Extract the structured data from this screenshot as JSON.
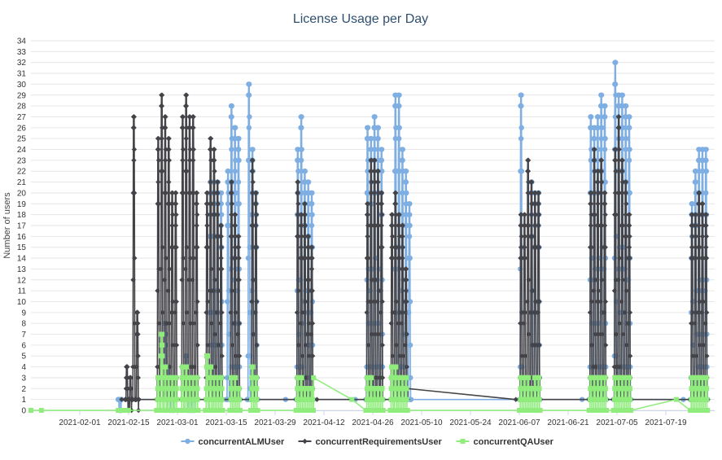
{
  "chart_data": {
    "type": "line",
    "title": "License Usage per Day",
    "xlabel": "",
    "ylabel": "Number of users",
    "x_type": "date",
    "x_range": [
      "2021-01-18",
      "2021-08-02"
    ],
    "x_ticks": [
      "2021-02-01",
      "2021-02-15",
      "2021-03-01",
      "2021-03-15",
      "2021-03-29",
      "2021-04-12",
      "2021-04-26",
      "2021-05-10",
      "2021-05-24",
      "2021-06-07",
      "2021-06-21",
      "2021-07-05",
      "2021-07-19"
    ],
    "ylim": [
      0,
      34
    ],
    "y_ticks": [
      0,
      1,
      2,
      3,
      4,
      5,
      6,
      7,
      8,
      9,
      10,
      11,
      12,
      13,
      14,
      15,
      16,
      17,
      18,
      19,
      20,
      21,
      22,
      23,
      24,
      25,
      26,
      27,
      28,
      29,
      30,
      31,
      32,
      33,
      34
    ],
    "grid": "horizontal",
    "legend_position": "bottom",
    "series": [
      {
        "name": "concurrentALMUser",
        "color": "#7eaee2",
        "marker": "circle",
        "spikes": [
          {
            "start": "2021-02-12",
            "end": "2021-02-12",
            "peaks": [
              1
            ]
          },
          {
            "start": "2021-02-25",
            "end": "2021-02-27",
            "peaks": [
              8,
              4,
              3
            ]
          },
          {
            "start": "2021-03-03",
            "end": "2021-03-05",
            "peaks": [
              5,
              3,
              3
            ]
          },
          {
            "start": "2021-03-10",
            "end": "2021-03-13",
            "peaks": [
              21,
              21,
              21,
              20
            ]
          },
          {
            "start": "2021-03-15",
            "end": "2021-03-18",
            "peaks": [
              22,
              28,
              26,
              25
            ]
          },
          {
            "start": "2021-03-21",
            "end": "2021-03-23",
            "peaks": [
              30,
              24,
              20
            ]
          },
          {
            "start": "2021-04-04",
            "end": "2021-04-08",
            "peaks": [
              24,
              27,
              22,
              21,
              20
            ]
          },
          {
            "start": "2021-04-24",
            "end": "2021-04-28",
            "peaks": [
              26,
              25,
              27,
              26,
              24
            ]
          },
          {
            "start": "2021-05-02",
            "end": "2021-05-06",
            "peaks": [
              29,
              29,
              24,
              22,
              19
            ]
          },
          {
            "start": "2021-06-07",
            "end": "2021-06-07",
            "peaks": [
              29
            ]
          },
          {
            "start": "2021-06-10",
            "end": "2021-06-12",
            "peaks": [
              21,
              20,
              20
            ]
          },
          {
            "start": "2021-06-27",
            "end": "2021-07-01",
            "peaks": [
              27,
              26,
              27,
              29,
              28
            ]
          },
          {
            "start": "2021-07-04",
            "end": "2021-07-08",
            "peaks": [
              32,
              29,
              29,
              28,
              27
            ]
          },
          {
            "start": "2021-07-26",
            "end": "2021-07-30",
            "peaks": [
              19,
              22,
              24,
              24,
              24
            ]
          }
        ],
        "baseline": [
          {
            "x": "2021-02-13",
            "y": 1
          },
          {
            "x": "2021-04-01",
            "y": 1
          },
          {
            "x": "2021-04-21",
            "y": 1
          },
          {
            "x": "2021-06-25",
            "y": 1
          },
          {
            "x": "2021-07-24",
            "y": 1
          }
        ]
      },
      {
        "name": "concurrentRequirementsUser",
        "color": "#434348",
        "marker": "diamond",
        "spikes": [
          {
            "start": "2021-02-14",
            "end": "2021-02-17",
            "peaks": [
              4,
              3,
              27,
              9
            ]
          },
          {
            "start": "2021-02-23",
            "end": "2021-02-28",
            "peaks": [
              25,
              29,
              27,
              25,
              20,
              20
            ]
          },
          {
            "start": "2021-03-02",
            "end": "2021-03-06",
            "peaks": [
              27,
              29,
              27,
              27,
              20
            ]
          },
          {
            "start": "2021-03-09",
            "end": "2021-03-13",
            "peaks": [
              20,
              25,
              24,
              21,
              17
            ]
          },
          {
            "start": "2021-03-16",
            "end": "2021-03-18",
            "peaks": [
              21,
              18,
              16
            ]
          },
          {
            "start": "2021-03-22",
            "end": "2021-03-23",
            "peaks": [
              23,
              20
            ]
          },
          {
            "start": "2021-04-04",
            "end": "2021-04-08",
            "peaks": [
              21,
              18,
              19,
              16,
              15
            ]
          },
          {
            "start": "2021-04-24",
            "end": "2021-04-28",
            "peaks": [
              19,
              23,
              23,
              22,
              20
            ]
          },
          {
            "start": "2021-05-01",
            "end": "2021-05-05",
            "peaks": [
              18,
              20,
              18,
              17,
              13
            ]
          },
          {
            "start": "2021-06-07",
            "end": "2021-06-12",
            "peaks": [
              18,
              18,
              23,
              21,
              20,
              20
            ]
          },
          {
            "start": "2021-06-27",
            "end": "2021-07-01",
            "peaks": [
              20,
              24,
              22,
              23,
              20
            ]
          },
          {
            "start": "2021-07-04",
            "end": "2021-07-08",
            "peaks": [
              24,
              27,
              23,
              21,
              18
            ]
          },
          {
            "start": "2021-07-26",
            "end": "2021-07-30",
            "peaks": [
              18,
              18,
              20,
              19,
              18
            ]
          }
        ],
        "baseline": [
          {
            "x": "2021-02-13",
            "y": 1
          },
          {
            "x": "2021-03-19",
            "y": 1
          },
          {
            "x": "2021-04-10",
            "y": 1
          },
          {
            "x": "2021-05-06",
            "y": 2
          },
          {
            "x": "2021-06-06",
            "y": 1
          },
          {
            "x": "2021-07-31",
            "y": 1
          }
        ]
      },
      {
        "name": "concurrentQAUser",
        "color": "#90ed7d",
        "marker": "square",
        "spikes": [
          {
            "start": "2021-02-23",
            "end": "2021-02-28",
            "peaks": [
              3,
              7,
              4,
              3,
              3,
              3
            ]
          },
          {
            "start": "2021-03-02",
            "end": "2021-03-06",
            "peaks": [
              4,
              4,
              3,
              3,
              3
            ]
          },
          {
            "start": "2021-03-09",
            "end": "2021-03-13",
            "peaks": [
              5,
              4,
              3,
              3,
              3
            ]
          },
          {
            "start": "2021-03-16",
            "end": "2021-03-18",
            "peaks": [
              3,
              3,
              2
            ]
          },
          {
            "start": "2021-03-22",
            "end": "2021-03-23",
            "peaks": [
              4,
              3
            ]
          },
          {
            "start": "2021-04-04",
            "end": "2021-04-08",
            "peaks": [
              3,
              3,
              2,
              2,
              2
            ]
          },
          {
            "start": "2021-04-24",
            "end": "2021-04-28",
            "peaks": [
              3,
              3,
              2,
              2,
              2
            ]
          },
          {
            "start": "2021-05-01",
            "end": "2021-05-05",
            "peaks": [
              4,
              4,
              3,
              3,
              3
            ]
          },
          {
            "start": "2021-06-07",
            "end": "2021-06-12",
            "peaks": [
              3,
              3,
              3,
              2,
              3,
              3
            ]
          },
          {
            "start": "2021-06-27",
            "end": "2021-07-01",
            "peaks": [
              3,
              3,
              3,
              3,
              3
            ]
          },
          {
            "start": "2021-07-04",
            "end": "2021-07-08",
            "peaks": [
              3,
              3,
              3,
              3,
              3
            ]
          },
          {
            "start": "2021-07-26",
            "end": "2021-07-30",
            "peaks": [
              3,
              3,
              3,
              3,
              3
            ]
          }
        ],
        "baseline": [
          {
            "x": "2021-01-18",
            "y": 0
          },
          {
            "x": "2021-01-21",
            "y": 0
          },
          {
            "x": "2021-02-12",
            "y": 0
          },
          {
            "x": "2021-02-13",
            "y": 0
          },
          {
            "x": "2021-02-14",
            "y": 0
          },
          {
            "x": "2021-02-15",
            "y": 0
          },
          {
            "x": "2021-03-24",
            "y": 0
          },
          {
            "x": "2021-04-09",
            "y": 3
          },
          {
            "x": "2021-04-20",
            "y": 1
          },
          {
            "x": "2021-07-09",
            "y": 0
          },
          {
            "x": "2021-07-22",
            "y": 1
          }
        ]
      }
    ]
  }
}
